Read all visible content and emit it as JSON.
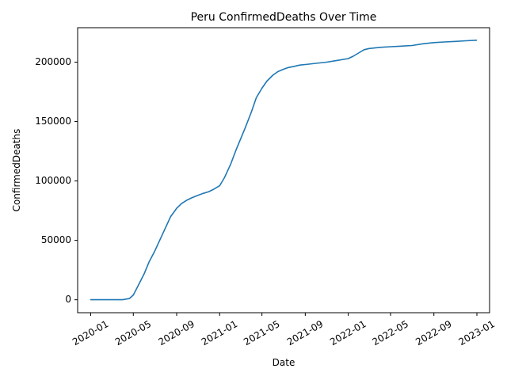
{
  "chart_data": {
    "type": "line",
    "title": "Peru  ConfirmedDeaths Over Time",
    "xlabel": "Date",
    "ylabel": "ConfirmedDeaths",
    "xlim": [
      "2019-11-25",
      "2023-02-06"
    ],
    "ylim": [
      -10900,
      229000
    ],
    "x_ticks": [
      "2020-01",
      "2020-05",
      "2020-09",
      "2021-01",
      "2021-05",
      "2021-09",
      "2022-01",
      "2022-05",
      "2022-09",
      "2023-01"
    ],
    "y_ticks": [
      0,
      50000,
      100000,
      150000,
      200000
    ],
    "y_tick_labels": [
      "0",
      "50000",
      "100000",
      "150000",
      "200000"
    ],
    "grid": false,
    "legend": "none",
    "series": [
      {
        "color": "#1f77b4",
        "x": [
          "2020-01-01",
          "2020-03-01",
          "2020-04-01",
          "2020-04-20",
          "2020-05-01",
          "2020-05-15",
          "2020-06-01",
          "2020-06-15",
          "2020-07-01",
          "2020-07-15",
          "2020-08-01",
          "2020-08-15",
          "2020-09-01",
          "2020-09-15",
          "2020-10-01",
          "2020-10-15",
          "2020-11-01",
          "2020-11-15",
          "2020-12-01",
          "2020-12-15",
          "2021-01-01",
          "2021-01-15",
          "2021-02-01",
          "2021-02-15",
          "2021-03-01",
          "2021-03-15",
          "2021-04-01",
          "2021-04-15",
          "2021-05-01",
          "2021-05-15",
          "2021-06-01",
          "2021-06-15",
          "2021-07-01",
          "2021-07-15",
          "2021-08-01",
          "2021-08-15",
          "2021-09-01",
          "2021-10-01",
          "2021-11-01",
          "2021-12-01",
          "2022-01-01",
          "2022-01-15",
          "2022-02-01",
          "2022-02-15",
          "2022-03-01",
          "2022-04-01",
          "2022-05-01",
          "2022-06-01",
          "2022-07-01",
          "2022-08-01",
          "2022-09-01",
          "2022-10-01",
          "2022-11-01",
          "2022-12-01",
          "2022-12-31"
        ],
        "values": [
          0,
          0,
          0,
          1000,
          4000,
          12000,
          22000,
          32000,
          41000,
          50000,
          61000,
          70000,
          77000,
          81000,
          84000,
          86000,
          88000,
          89500,
          91000,
          93000,
          96000,
          103000,
          114000,
          125000,
          135000,
          145000,
          158000,
          170000,
          178000,
          184000,
          189000,
          192000,
          194000,
          195500,
          196500,
          197500,
          198000,
          199000,
          200000,
          201500,
          203000,
          205000,
          208000,
          210500,
          211500,
          212500,
          213000,
          213500,
          214000,
          215500,
          216500,
          217000,
          217500,
          218000,
          218500
        ]
      }
    ]
  }
}
